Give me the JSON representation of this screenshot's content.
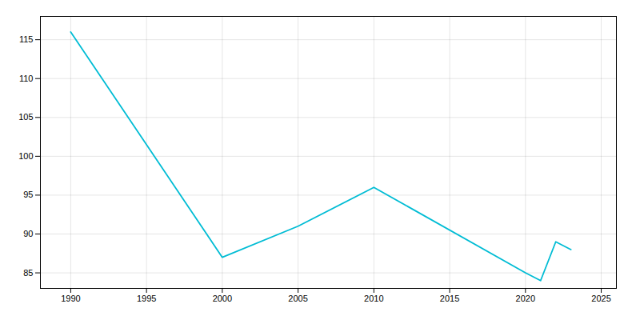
{
  "chart_data": {
    "type": "line",
    "x": [
      1990,
      2000,
      2005,
      2010,
      2020,
      2021,
      2022,
      2023
    ],
    "values": [
      116,
      87,
      91,
      96,
      85,
      84,
      89,
      88
    ],
    "color": "#00bcd4",
    "xlim": [
      1988,
      2026
    ],
    "ylim": [
      83,
      118
    ],
    "xticks": [
      1990,
      1995,
      2000,
      2005,
      2010,
      2015,
      2020,
      2025
    ],
    "yticks": [
      85,
      90,
      95,
      100,
      105,
      110,
      115
    ],
    "grid": true
  }
}
